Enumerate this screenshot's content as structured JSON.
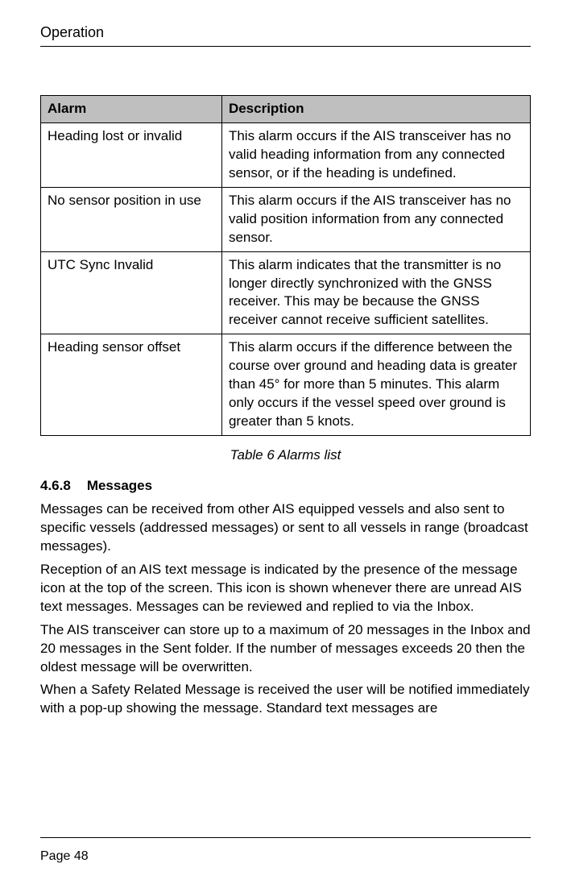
{
  "header": {
    "title": "Operation"
  },
  "table": {
    "columns": [
      "Alarm",
      "Description"
    ],
    "rows": [
      [
        "Heading lost or invalid",
        "This alarm occurs if the AIS transceiver has no valid heading information from any connected sensor, or if the heading is undefined."
      ],
      [
        "No sensor position in use",
        "This alarm occurs if the AIS transceiver has no valid position information from any connected sensor."
      ],
      [
        "UTC Sync Invalid",
        "This alarm indicates that the transmitter is no longer directly synchronized with the GNSS receiver. This may be because the GNSS receiver cannot receive sufficient satellites."
      ],
      [
        "Heading sensor offset",
        "This alarm occurs if the difference between the course over ground and heading data is greater than 45° for more than 5 minutes. This alarm only occurs if the vessel speed over ground is greater than 5 knots."
      ]
    ],
    "caption": "Table 6 Alarms list",
    "header_bg": "#bfbfbf",
    "border_color": "#000000"
  },
  "section": {
    "number": "4.6.8",
    "title": "Messages",
    "paragraphs": [
      "Messages can be received from other AIS equipped vessels and also sent to specific vessels (addressed messages) or sent to all vessels in range (broadcast messages).",
      "Reception of an AIS text message is indicated by the presence of the message icon at the top of the screen. This icon is shown whenever there are unread AIS text messages. Messages can be reviewed and replied to via the Inbox.",
      "The AIS transceiver can store up to a maximum of 20 messages in the Inbox and 20 messages in the Sent folder. If the number of messages exceeds 20 then the oldest message will be overwritten.",
      "When a Safety Related Message is received the user will be notified immediately with a pop-up showing the message. Standard text messages are"
    ]
  },
  "footer": {
    "page_label": "Page  48"
  },
  "typography": {
    "body_fontsize": 17,
    "header_fontsize": 18,
    "footer_fontsize": 16,
    "font_family": "Arial"
  },
  "colors": {
    "background": "#ffffff",
    "text": "#000000",
    "rule": "#000000"
  }
}
